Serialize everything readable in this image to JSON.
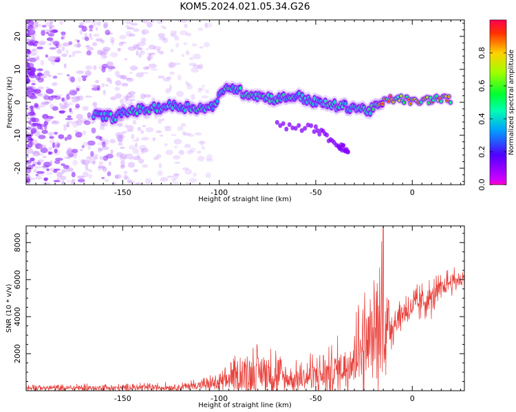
{
  "chart_data": [
    {
      "type": "heatmap",
      "title": "KOM5.2024.021.05.34.G26",
      "xlabel": "Height of straight line (km)",
      "ylabel": "Frequency (Hz)",
      "xlim": [
        -200,
        27
      ],
      "ylim": [
        -25,
        25
      ],
      "xticks": [
        -150,
        -100,
        -50,
        0
      ],
      "yticks": [
        -20,
        -10,
        0,
        10,
        20
      ],
      "colorbar": {
        "label": "Normalized spectral amplitude",
        "range": [
          0,
          1
        ],
        "ticks": [
          0.0,
          0.2,
          0.4,
          0.6,
          0.8
        ],
        "colormap": "gist_rainbow_r"
      },
      "ridge": [
        {
          "x": -165,
          "f": -4,
          "a": 0.5
        },
        {
          "x": -155,
          "f": -4.5,
          "a": 0.6
        },
        {
          "x": -145,
          "f": -2.5,
          "a": 0.55
        },
        {
          "x": -135,
          "f": -2,
          "a": 0.6
        },
        {
          "x": -125,
          "f": -1,
          "a": 0.55
        },
        {
          "x": -115,
          "f": -1.5,
          "a": 0.6
        },
        {
          "x": -105,
          "f": -2,
          "a": 0.55
        },
        {
          "x": -95,
          "f": 5,
          "a": 0.6
        },
        {
          "x": -88,
          "f": 3,
          "a": 0.65
        },
        {
          "x": -80,
          "f": 2,
          "a": 0.6
        },
        {
          "x": -70,
          "f": 1,
          "a": 0.6
        },
        {
          "x": -60,
          "f": 2,
          "a": 0.55
        },
        {
          "x": -50,
          "f": 0,
          "a": 0.6
        },
        {
          "x": -40,
          "f": -1,
          "a": 0.6
        },
        {
          "x": -30,
          "f": -1.5,
          "a": 0.55
        },
        {
          "x": -22,
          "f": -2.5,
          "a": 0.7
        },
        {
          "x": -12,
          "f": 1,
          "a": 0.95
        },
        {
          "x": -5,
          "f": 1,
          "a": 0.8
        },
        {
          "x": 2,
          "f": 0,
          "a": 0.9
        },
        {
          "x": 10,
          "f": 1,
          "a": 0.85
        },
        {
          "x": 20,
          "f": 1,
          "a": 0.95
        }
      ],
      "side_branch": [
        {
          "x": -70,
          "f": -7
        },
        {
          "x": -50,
          "f": -8
        },
        {
          "x": -38,
          "f": -13
        },
        {
          "x": -33,
          "f": -15
        }
      ]
    },
    {
      "type": "line",
      "xlabel": "Height of straight line (km)",
      "ylabel": "SNR (10 * v/v)",
      "xlim": [
        -200,
        27
      ],
      "ylim": [
        0,
        8900
      ],
      "xticks": [
        -150,
        -100,
        -50,
        0
      ],
      "yticks": [
        2000,
        4000,
        6000,
        8000
      ],
      "color": "#e8413c",
      "envelope": [
        {
          "x": -200,
          "mean": 150,
          "peak": 350
        },
        {
          "x": -150,
          "mean": 150,
          "peak": 400
        },
        {
          "x": -120,
          "mean": 200,
          "peak": 500
        },
        {
          "x": -100,
          "mean": 400,
          "peak": 1000
        },
        {
          "x": -85,
          "mean": 900,
          "peak": 2900
        },
        {
          "x": -75,
          "mean": 1000,
          "peak": 2800
        },
        {
          "x": -65,
          "mean": 600,
          "peak": 1600
        },
        {
          "x": -55,
          "mean": 700,
          "peak": 2000
        },
        {
          "x": -45,
          "mean": 900,
          "peak": 2400
        },
        {
          "x": -35,
          "mean": 1300,
          "peak": 3300
        },
        {
          "x": -25,
          "mean": 2500,
          "peak": 6000
        },
        {
          "x": -20,
          "mean": 3000,
          "peak": 6500
        },
        {
          "x": -15,
          "mean": 3500,
          "peak": 8850
        },
        {
          "x": -10,
          "mean": 3600,
          "peak": 5000
        },
        {
          "x": -5,
          "mean": 4200,
          "peak": 5500
        },
        {
          "x": 0,
          "mean": 4500,
          "peak": 5800
        },
        {
          "x": 5,
          "mean": 4800,
          "peak": 6000
        },
        {
          "x": 10,
          "mean": 5000,
          "peak": 6300
        },
        {
          "x": 15,
          "mean": 5500,
          "peak": 6500
        },
        {
          "x": 20,
          "mean": 5900,
          "peak": 6800
        },
        {
          "x": 27,
          "mean": 6000,
          "peak": 6700
        }
      ]
    }
  ]
}
